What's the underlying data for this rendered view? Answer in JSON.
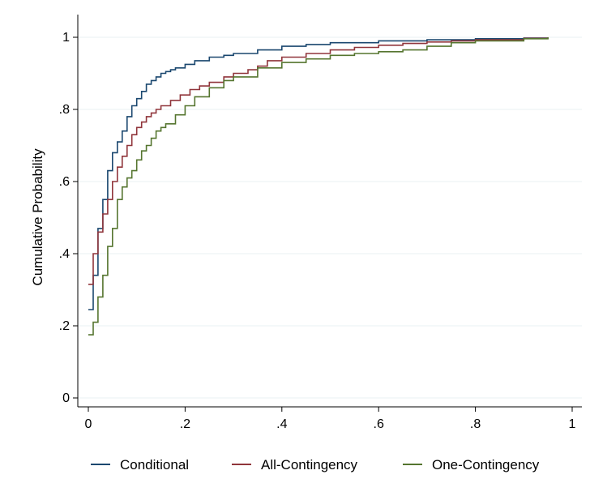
{
  "chart_data": {
    "type": "line",
    "step": true,
    "title": "",
    "xlabel": "",
    "ylabel": "Cumulative Probability",
    "xlim": [
      0,
      1
    ],
    "ylim": [
      0,
      1
    ],
    "xticks": [
      0,
      0.2,
      0.4,
      0.6,
      0.8,
      1
    ],
    "xtick_labels": [
      "0",
      ".2",
      ".4",
      ".6",
      ".8",
      "1"
    ],
    "yticks": [
      0,
      0.2,
      0.4,
      0.6,
      0.8,
      1
    ],
    "ytick_labels": [
      "0",
      ".2",
      ".4",
      ".6",
      ".8",
      "1"
    ],
    "grid": "horizontal",
    "legend_position": "bottom",
    "series": [
      {
        "name": "Conditional",
        "color": "#1a476f",
        "x": [
          0.0,
          0.01,
          0.02,
          0.03,
          0.04,
          0.05,
          0.06,
          0.07,
          0.08,
          0.09,
          0.1,
          0.11,
          0.12,
          0.13,
          0.14,
          0.15,
          0.16,
          0.17,
          0.18,
          0.2,
          0.22,
          0.25,
          0.28,
          0.3,
          0.35,
          0.4,
          0.45,
          0.5,
          0.6,
          0.7,
          0.8,
          0.9,
          0.95
        ],
        "y": [
          0.245,
          0.34,
          0.47,
          0.55,
          0.63,
          0.68,
          0.71,
          0.74,
          0.78,
          0.81,
          0.83,
          0.85,
          0.87,
          0.88,
          0.89,
          0.9,
          0.905,
          0.91,
          0.915,
          0.925,
          0.935,
          0.945,
          0.95,
          0.955,
          0.965,
          0.975,
          0.98,
          0.985,
          0.99,
          0.993,
          0.996,
          0.998,
          1.0
        ]
      },
      {
        "name": "All-Contingency",
        "color": "#90353b",
        "x": [
          0.0,
          0.01,
          0.02,
          0.03,
          0.04,
          0.05,
          0.06,
          0.07,
          0.08,
          0.09,
          0.1,
          0.11,
          0.12,
          0.13,
          0.14,
          0.15,
          0.17,
          0.19,
          0.21,
          0.23,
          0.25,
          0.28,
          0.3,
          0.33,
          0.35,
          0.37,
          0.4,
          0.45,
          0.5,
          0.55,
          0.6,
          0.65,
          0.7,
          0.75,
          0.8,
          0.9,
          0.95
        ],
        "y": [
          0.315,
          0.4,
          0.46,
          0.51,
          0.55,
          0.6,
          0.64,
          0.67,
          0.7,
          0.73,
          0.75,
          0.765,
          0.78,
          0.79,
          0.8,
          0.81,
          0.825,
          0.84,
          0.855,
          0.865,
          0.875,
          0.89,
          0.9,
          0.91,
          0.92,
          0.935,
          0.945,
          0.955,
          0.965,
          0.972,
          0.978,
          0.983,
          0.987,
          0.99,
          0.993,
          0.997,
          1.0
        ]
      },
      {
        "name": "One-Contingency",
        "color": "#55752f",
        "x": [
          0.0,
          0.01,
          0.02,
          0.03,
          0.04,
          0.05,
          0.06,
          0.07,
          0.08,
          0.09,
          0.1,
          0.11,
          0.12,
          0.13,
          0.14,
          0.15,
          0.16,
          0.18,
          0.2,
          0.22,
          0.25,
          0.28,
          0.3,
          0.35,
          0.4,
          0.45,
          0.5,
          0.55,
          0.6,
          0.65,
          0.7,
          0.75,
          0.8,
          0.9,
          0.95
        ],
        "y": [
          0.175,
          0.21,
          0.28,
          0.34,
          0.42,
          0.47,
          0.55,
          0.585,
          0.61,
          0.63,
          0.66,
          0.685,
          0.7,
          0.72,
          0.74,
          0.75,
          0.76,
          0.785,
          0.81,
          0.835,
          0.86,
          0.88,
          0.89,
          0.915,
          0.93,
          0.94,
          0.95,
          0.955,
          0.96,
          0.965,
          0.975,
          0.985,
          0.99,
          0.996,
          1.0
        ]
      }
    ]
  },
  "colors": {
    "grid": "#eaf2f3",
    "axis": "#000000"
  }
}
